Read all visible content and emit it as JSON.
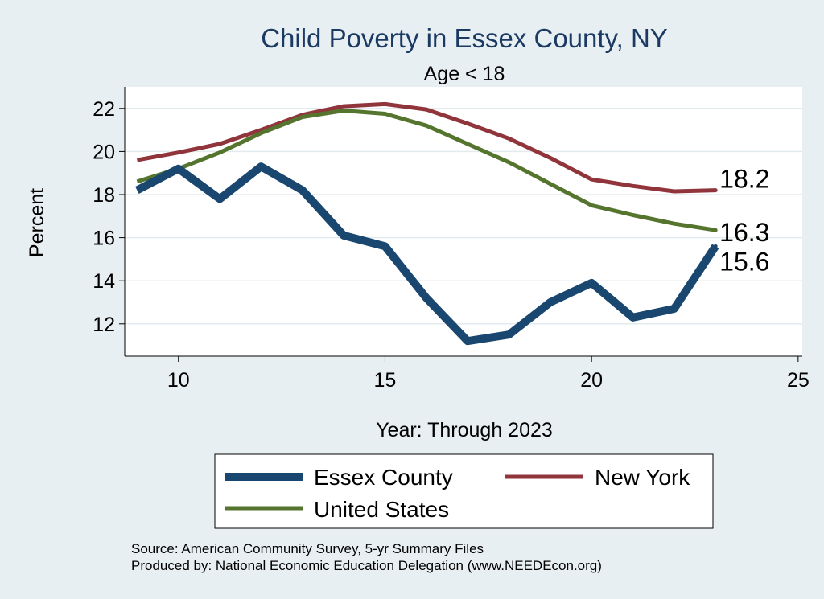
{
  "chart_data": {
    "type": "line",
    "title": "Child Poverty in Essex County, NY",
    "subtitle": "Age < 18",
    "xlabel": "Year: Through 2023",
    "ylabel": "Percent",
    "xlim": [
      8.7,
      25.1
    ],
    "ylim": [
      10.5,
      23.0
    ],
    "xticks": [
      10,
      15,
      20,
      25
    ],
    "yticks": [
      12,
      14,
      16,
      18,
      20,
      22
    ],
    "grid": "horizontal",
    "legend_position": "bottom",
    "x": [
      9,
      10,
      11,
      12,
      13,
      14,
      15,
      16,
      17,
      18,
      19,
      20,
      21,
      22,
      23
    ],
    "series": [
      {
        "name": "Essex County",
        "color": "#1a476f",
        "end_label": "15.6",
        "values": [
          18.2,
          19.2,
          17.8,
          19.3,
          18.2,
          16.1,
          15.6,
          13.2,
          11.2,
          11.5,
          13.0,
          13.9,
          12.3,
          12.7,
          15.6
        ]
      },
      {
        "name": "New York",
        "color": "#90353b",
        "end_label": "18.2",
        "values": [
          19.6,
          19.95,
          20.35,
          21.0,
          21.7,
          22.1,
          22.2,
          21.95,
          21.3,
          20.6,
          19.7,
          18.7,
          18.4,
          18.15,
          18.2
        ]
      },
      {
        "name": "United States",
        "color": "#55752f",
        "end_label": "16.3",
        "values": [
          18.6,
          19.2,
          19.95,
          20.85,
          21.6,
          21.9,
          21.75,
          21.2,
          20.35,
          19.5,
          18.5,
          17.5,
          17.05,
          16.65,
          16.35
        ]
      }
    ],
    "source_line_1": "Source: American Community Survey, 5-yr Summary Files",
    "source_line_2": "Produced by: National Economic Education Delegation (www.NEEDEcon.org)"
  }
}
